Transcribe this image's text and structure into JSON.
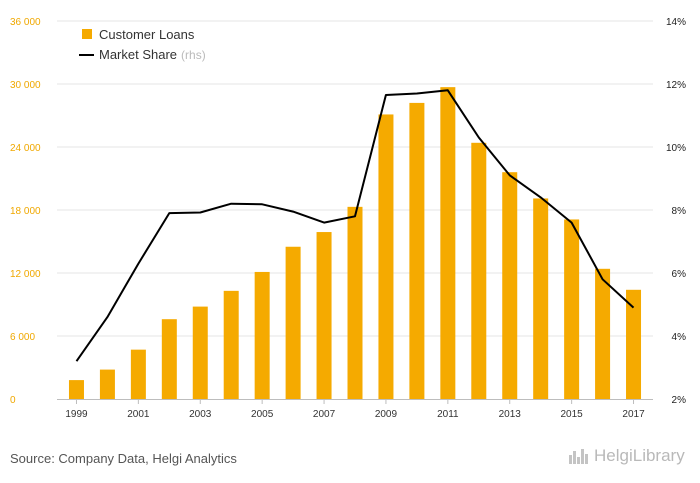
{
  "chart_data": {
    "type": "bar+line",
    "categories": [
      "1999",
      "2000",
      "2001",
      "2002",
      "2003",
      "2004",
      "2005",
      "2006",
      "2007",
      "2008",
      "2009",
      "2010",
      "2011",
      "2012",
      "2013",
      "2014",
      "2015",
      "2016",
      "2017"
    ],
    "x_tick_labels": [
      "1999",
      "2001",
      "2003",
      "2005",
      "2007",
      "2009",
      "2011",
      "2013",
      "2015",
      "2017"
    ],
    "series": [
      {
        "name": "Customer Loans",
        "type": "bar",
        "axis": "left",
        "color": "#f5aa00",
        "values": [
          1800,
          2800,
          4700,
          7600,
          8800,
          10300,
          12100,
          14500,
          15900,
          18300,
          27100,
          28200,
          29700,
          24400,
          21600,
          19100,
          17100,
          12400,
          10400
        ]
      },
      {
        "name": "Market Share",
        "unit_note": "(rhs)",
        "type": "line",
        "axis": "right",
        "color": "#000000",
        "values": [
          3.2,
          4.6,
          6.3,
          7.9,
          7.92,
          8.2,
          8.18,
          7.95,
          7.6,
          7.8,
          11.65,
          11.7,
          11.8,
          10.3,
          9.1,
          8.4,
          7.6,
          5.8,
          4.9
        ]
      }
    ],
    "y_left": {
      "ylim": [
        0,
        36000
      ],
      "ticks": [
        0,
        6000,
        12000,
        18000,
        24000,
        30000,
        36000
      ],
      "tick_labels": [
        "0",
        "6 000",
        "12 000",
        "18 000",
        "24 000",
        "30 000",
        "36 000"
      ]
    },
    "y_right": {
      "ylim": [
        2,
        14
      ],
      "ticks": [
        2,
        4,
        6,
        8,
        10,
        12,
        14
      ],
      "tick_labels": [
        "2%",
        "4%",
        "6%",
        "8%",
        "10%",
        "12%",
        "14%"
      ]
    },
    "grid": true,
    "legend_position": "top-left"
  },
  "footer": {
    "source": "Source: Company Data, Helgi Analytics",
    "logo_text": "HelgiLibrary"
  },
  "colors": {
    "accent": "#f5aa00",
    "left_axis_text": "#f0a800",
    "grid": "#e6e6e6"
  }
}
